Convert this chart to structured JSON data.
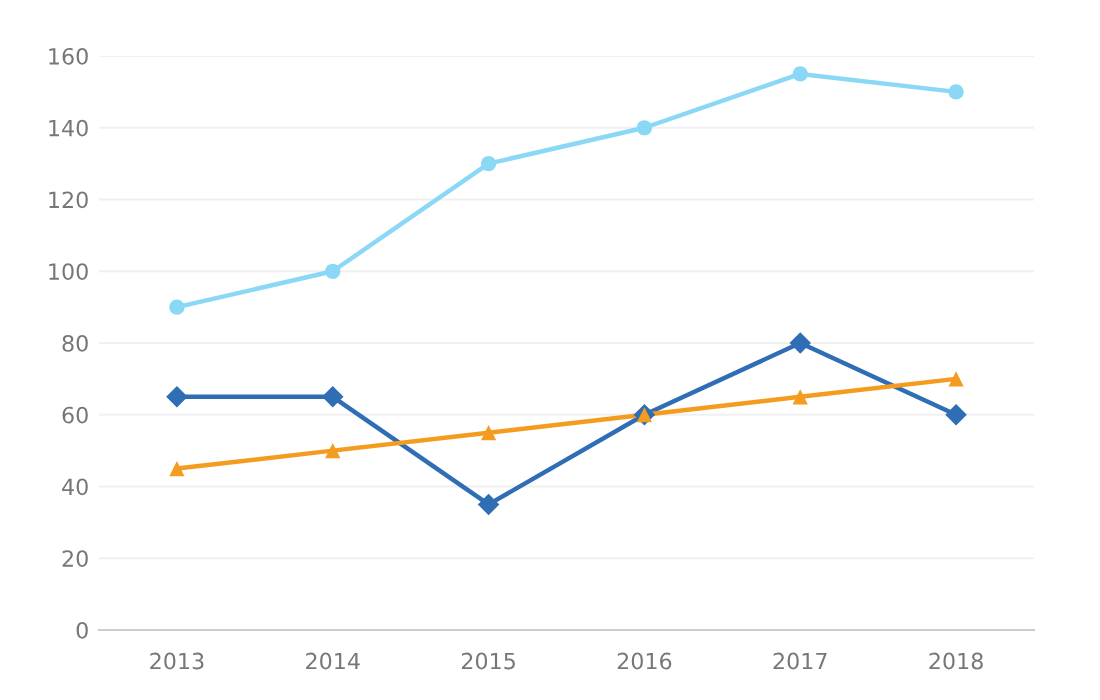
{
  "chart_data": {
    "type": "line",
    "categories": [
      "2013",
      "2014",
      "2015",
      "2016",
      "2017",
      "2018"
    ],
    "series": [
      {
        "color": "#8ad8f5",
        "marker": "circle",
        "values": [
          90,
          100,
          130,
          140,
          155,
          150
        ]
      },
      {
        "color": "#2f6db5",
        "marker": "diamond",
        "values": [
          65,
          65,
          35,
          60,
          80,
          60
        ]
      },
      {
        "color": "#f39c1f",
        "marker": "triangle",
        "values": [
          45,
          50,
          55,
          60,
          65,
          70
        ]
      }
    ],
    "ylim": [
      0,
      160
    ],
    "yticks": [
      0,
      20,
      40,
      60,
      80,
      100,
      120,
      140,
      160
    ],
    "grid": "y",
    "legend": false
  }
}
